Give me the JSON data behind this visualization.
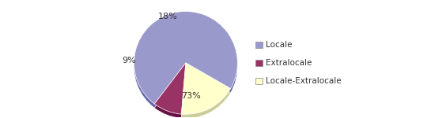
{
  "labels": [
    "Locale",
    "Extralocale",
    "Locale-Extralocale"
  ],
  "values": [
    73,
    9,
    18
  ],
  "colors": [
    "#9999cc",
    "#993366",
    "#ffffcc"
  ],
  "dark_colors": [
    "#6666aa",
    "#661144",
    "#cccc99"
  ],
  "pct_labels": [
    "73%",
    "9%",
    "18%"
  ],
  "legend_labels": [
    "Locale",
    "Extralocale",
    "Locale-Extralocale"
  ],
  "startangle": -30,
  "background_color": "#ffffff",
  "border_color": "#aaaaaa",
  "depth": 0.13
}
